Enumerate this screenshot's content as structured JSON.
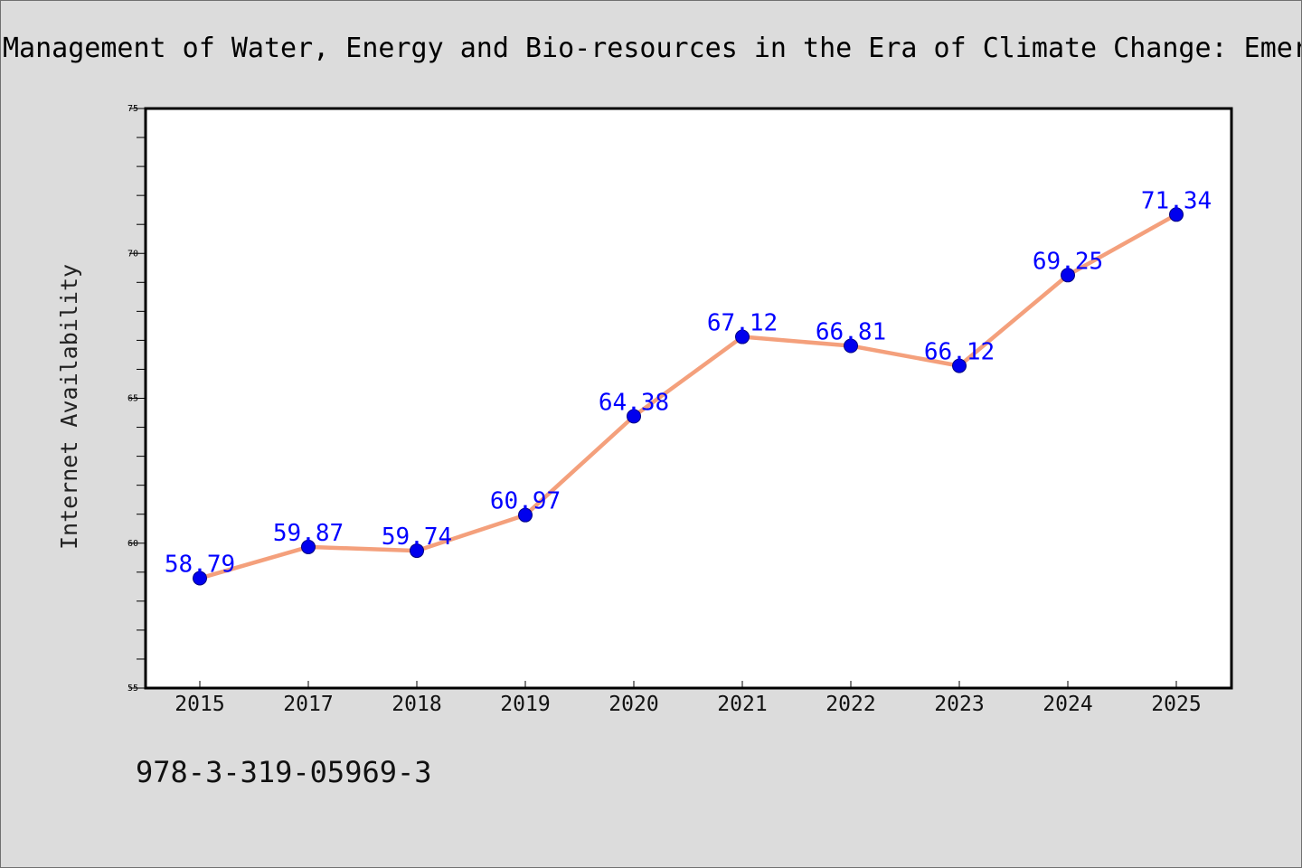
{
  "header": {
    "title": "Management of Water, Energy and Bio-resources in the Era of Climate Change: Emer"
  },
  "footer": {
    "isbn": "978-3-319-05969-3"
  },
  "colors": {
    "line": "#f4a07c",
    "marker": "#0000ee",
    "data_label": "#0000ff",
    "page_background": "#dcdcdc",
    "plot_background": "#ffffff"
  },
  "chart_data": {
    "type": "line",
    "title": "Management of Water, Energy and Bio-resources in the Era of Climate Change: Emer",
    "xlabel": "",
    "ylabel": "Internet Availability",
    "categories": [
      "2015",
      "2017",
      "2018",
      "2019",
      "2020",
      "2021",
      "2022",
      "2023",
      "2024",
      "2025"
    ],
    "series": [
      {
        "values": [
          58.79,
          59.87,
          59.74,
          60.97,
          64.38,
          67.12,
          66.81,
          66.12,
          69.25,
          71.34
        ],
        "value_labels": [
          "58.79",
          "59.87",
          "59.74",
          "60.97",
          "64.38",
          "67.12",
          "66.81",
          "66.12",
          "69.25",
          "71.34"
        ]
      }
    ],
    "ylim": [
      55,
      75
    ],
    "yticks": [
      55,
      60,
      65,
      70,
      75
    ],
    "ytick_labels": [
      "55",
      "60",
      "65",
      "70",
      "75"
    ],
    "minor_ytick_step": 1,
    "grid": false,
    "legend": "none"
  }
}
